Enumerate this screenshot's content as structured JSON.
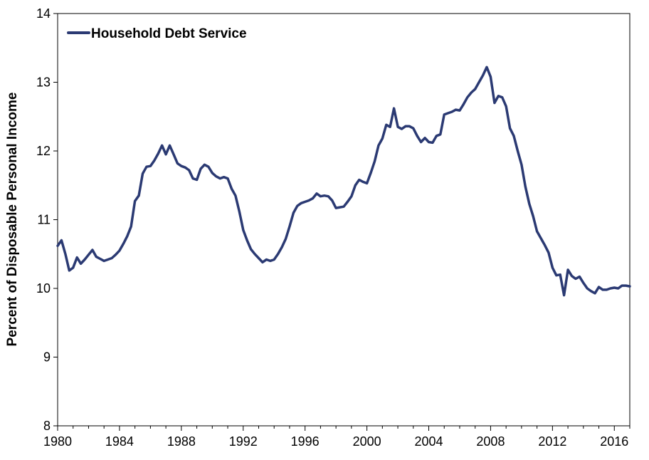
{
  "chart_data": {
    "type": "line",
    "title": "",
    "xlabel": "",
    "ylabel": "Percent of Disposable Personal Income",
    "xlim": [
      1980,
      2017
    ],
    "ylim": [
      8,
      14
    ],
    "x_ticks": [
      1980,
      1984,
      1988,
      1992,
      1996,
      2000,
      2004,
      2008,
      2012,
      2016
    ],
    "x_tick_labels": [
      "1980",
      "1984",
      "1988",
      "1992",
      "1996",
      "2000",
      "2004",
      "2008",
      "2012",
      "2016"
    ],
    "y_ticks": [
      8,
      9,
      10,
      11,
      12,
      13,
      14
    ],
    "y_tick_labels": [
      "8",
      "9",
      "10",
      "11",
      "12",
      "13",
      "14"
    ],
    "grid": false,
    "legend": {
      "position": "top-left"
    },
    "series": [
      {
        "name": "Household Debt Service",
        "color": "#2b3a73",
        "points": [
          [
            1980.0,
            10.62
          ],
          [
            1980.25,
            10.7
          ],
          [
            1980.5,
            10.5
          ],
          [
            1980.75,
            10.26
          ],
          [
            1981.0,
            10.3
          ],
          [
            1981.25,
            10.45
          ],
          [
            1981.5,
            10.36
          ],
          [
            1981.75,
            10.42
          ],
          [
            1982.0,
            10.49
          ],
          [
            1982.25,
            10.56
          ],
          [
            1982.5,
            10.46
          ],
          [
            1982.75,
            10.43
          ],
          [
            1983.0,
            10.4
          ],
          [
            1983.25,
            10.42
          ],
          [
            1983.5,
            10.44
          ],
          [
            1983.75,
            10.49
          ],
          [
            1984.0,
            10.55
          ],
          [
            1984.25,
            10.65
          ],
          [
            1984.5,
            10.76
          ],
          [
            1984.75,
            10.9
          ],
          [
            1985.0,
            11.27
          ],
          [
            1985.25,
            11.35
          ],
          [
            1985.5,
            11.67
          ],
          [
            1985.75,
            11.77
          ],
          [
            1986.0,
            11.78
          ],
          [
            1986.25,
            11.86
          ],
          [
            1986.5,
            11.96
          ],
          [
            1986.75,
            12.08
          ],
          [
            1987.0,
            11.95
          ],
          [
            1987.25,
            12.08
          ],
          [
            1987.5,
            11.95
          ],
          [
            1987.75,
            11.82
          ],
          [
            1988.0,
            11.78
          ],
          [
            1988.25,
            11.76
          ],
          [
            1988.5,
            11.72
          ],
          [
            1988.75,
            11.6
          ],
          [
            1989.0,
            11.58
          ],
          [
            1989.25,
            11.74
          ],
          [
            1989.5,
            11.8
          ],
          [
            1989.75,
            11.77
          ],
          [
            1990.0,
            11.68
          ],
          [
            1990.25,
            11.63
          ],
          [
            1990.5,
            11.6
          ],
          [
            1990.75,
            11.62
          ],
          [
            1991.0,
            11.6
          ],
          [
            1991.25,
            11.45
          ],
          [
            1991.5,
            11.35
          ],
          [
            1991.75,
            11.12
          ],
          [
            1992.0,
            10.85
          ],
          [
            1992.25,
            10.7
          ],
          [
            1992.5,
            10.57
          ],
          [
            1992.75,
            10.5
          ],
          [
            1993.0,
            10.44
          ],
          [
            1993.25,
            10.38
          ],
          [
            1993.5,
            10.42
          ],
          [
            1993.75,
            10.4
          ],
          [
            1994.0,
            10.42
          ],
          [
            1994.25,
            10.5
          ],
          [
            1994.5,
            10.6
          ],
          [
            1994.75,
            10.72
          ],
          [
            1995.0,
            10.9
          ],
          [
            1995.25,
            11.1
          ],
          [
            1995.5,
            11.2
          ],
          [
            1995.75,
            11.24
          ],
          [
            1996.0,
            11.26
          ],
          [
            1996.25,
            11.28
          ],
          [
            1996.5,
            11.31
          ],
          [
            1996.75,
            11.38
          ],
          [
            1997.0,
            11.34
          ],
          [
            1997.25,
            11.35
          ],
          [
            1997.5,
            11.34
          ],
          [
            1997.75,
            11.28
          ],
          [
            1998.0,
            11.17
          ],
          [
            1998.25,
            11.18
          ],
          [
            1998.5,
            11.19
          ],
          [
            1998.75,
            11.26
          ],
          [
            1999.0,
            11.34
          ],
          [
            1999.25,
            11.5
          ],
          [
            1999.5,
            11.58
          ],
          [
            1999.75,
            11.55
          ],
          [
            2000.0,
            11.53
          ],
          [
            2000.25,
            11.68
          ],
          [
            2000.5,
            11.85
          ],
          [
            2000.75,
            12.08
          ],
          [
            2001.0,
            12.18
          ],
          [
            2001.25,
            12.38
          ],
          [
            2001.5,
            12.35
          ],
          [
            2001.75,
            12.62
          ],
          [
            2002.0,
            12.35
          ],
          [
            2002.25,
            12.32
          ],
          [
            2002.5,
            12.36
          ],
          [
            2002.75,
            12.36
          ],
          [
            2003.0,
            12.33
          ],
          [
            2003.25,
            12.22
          ],
          [
            2003.5,
            12.13
          ],
          [
            2003.75,
            12.19
          ],
          [
            2004.0,
            12.13
          ],
          [
            2004.25,
            12.12
          ],
          [
            2004.5,
            12.22
          ],
          [
            2004.75,
            12.24
          ],
          [
            2005.0,
            12.53
          ],
          [
            2005.25,
            12.55
          ],
          [
            2005.5,
            12.57
          ],
          [
            2005.75,
            12.6
          ],
          [
            2006.0,
            12.59
          ],
          [
            2006.25,
            12.68
          ],
          [
            2006.5,
            12.78
          ],
          [
            2006.75,
            12.85
          ],
          [
            2007.0,
            12.9
          ],
          [
            2007.25,
            13.0
          ],
          [
            2007.5,
            13.1
          ],
          [
            2007.75,
            13.22
          ],
          [
            2008.0,
            13.08
          ],
          [
            2008.25,
            12.7
          ],
          [
            2008.5,
            12.8
          ],
          [
            2008.75,
            12.78
          ],
          [
            2009.0,
            12.65
          ],
          [
            2009.25,
            12.33
          ],
          [
            2009.5,
            12.22
          ],
          [
            2009.75,
            12.0
          ],
          [
            2010.0,
            11.8
          ],
          [
            2010.25,
            11.48
          ],
          [
            2010.5,
            11.23
          ],
          [
            2010.75,
            11.05
          ],
          [
            2011.0,
            10.83
          ],
          [
            2011.25,
            10.73
          ],
          [
            2011.5,
            10.63
          ],
          [
            2011.75,
            10.52
          ],
          [
            2012.0,
            10.3
          ],
          [
            2012.25,
            10.19
          ],
          [
            2012.5,
            10.2
          ],
          [
            2012.75,
            9.9
          ],
          [
            2013.0,
            10.27
          ],
          [
            2013.25,
            10.18
          ],
          [
            2013.5,
            10.14
          ],
          [
            2013.75,
            10.17
          ],
          [
            2014.0,
            10.08
          ],
          [
            2014.25,
            10.0
          ],
          [
            2014.5,
            9.96
          ],
          [
            2014.75,
            9.93
          ],
          [
            2015.0,
            10.02
          ],
          [
            2015.25,
            9.98
          ],
          [
            2015.5,
            9.98
          ],
          [
            2015.75,
            10.0
          ],
          [
            2016.0,
            10.01
          ],
          [
            2016.25,
            10.0
          ],
          [
            2016.5,
            10.04
          ],
          [
            2016.75,
            10.04
          ],
          [
            2017.0,
            10.03
          ]
        ]
      }
    ]
  }
}
